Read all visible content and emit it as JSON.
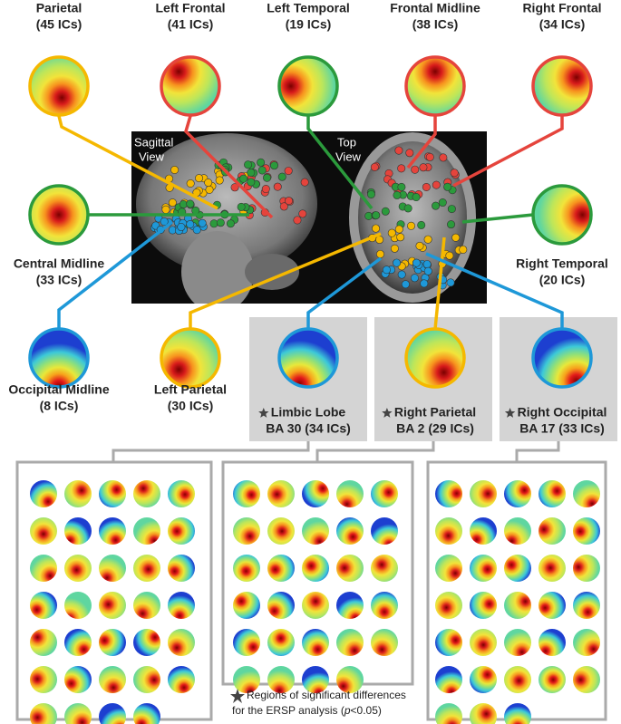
{
  "views": {
    "sagittal": [
      "Sagittal",
      "View"
    ],
    "top": [
      "Top",
      "View"
    ]
  },
  "clusters": [
    {
      "name": "Parietal",
      "sub": "(45 ICs)"
    },
    {
      "name": "Left Frontal",
      "sub": "(41 ICs)"
    },
    {
      "name": "Left Temporal",
      "sub": "(19 ICs)"
    },
    {
      "name": "Frontal Midline",
      "sub": "(38 ICs)"
    },
    {
      "name": "Right Frontal",
      "sub": "(34 ICs)"
    },
    {
      "name": "Central Midline",
      "sub": "(33 ICs)"
    },
    {
      "name": "Right Temporal",
      "sub": "(20 ICs)"
    },
    {
      "name": "Occipital Midline",
      "sub": "(8 ICs)"
    },
    {
      "name": "Left Parietal",
      "sub": "(30 ICs)"
    },
    {
      "name": "Limbic Lobe",
      "sub": "BA 30 (34 ICs)"
    },
    {
      "name": "Right Parietal",
      "sub": "BA 2 (29 ICs)"
    },
    {
      "name": "Right Occipital",
      "sub": "BA 17 (33 ICs)"
    }
  ],
  "note": {
    "line1": "Regions of significant differences",
    "line2_before": "for the ERSP analysis (",
    "line2_italic": "p",
    "line2_after": "<0.05)"
  }
}
